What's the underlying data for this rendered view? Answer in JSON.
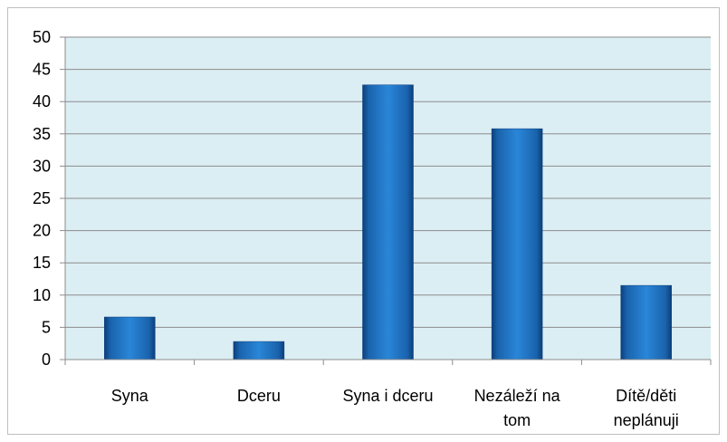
{
  "chart_data": {
    "type": "bar",
    "categories": [
      "Syna",
      "Dceru",
      "Syna i dceru",
      "Nezáleží na tom",
      "Dítě/děti neplánuji"
    ],
    "values": [
      6.6,
      2.8,
      42.6,
      35.8,
      11.5
    ],
    "color": "#1f6fc0",
    "ylim": [
      0,
      50
    ],
    "yticks": [
      0,
      5,
      10,
      15,
      20,
      25,
      30,
      35,
      40,
      45,
      50
    ],
    "grid": true
  }
}
